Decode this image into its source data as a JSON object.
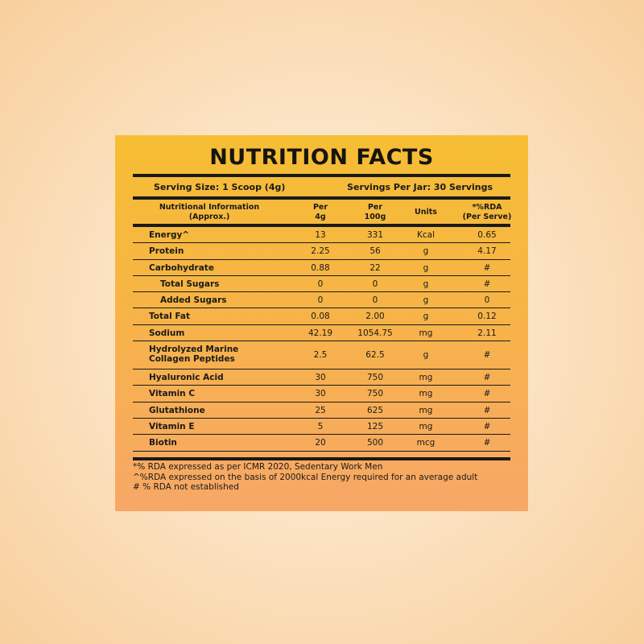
{
  "title": "NUTRITION FACTS",
  "serving_size": "Serving Size: 1 Scoop (4g)",
  "servings_per_jar": "Servings Per Jar: 30 Servings",
  "headers": {
    "info": "Nutritional Information",
    "info2": "(Approx.)",
    "per4g_a": "Per",
    "per4g_b": "4g",
    "per100g_a": "Per",
    "per100g_b": "100g",
    "units": "Units",
    "rda_a": "*%RDA",
    "rda_b": "(Per Serve)"
  },
  "rows": [
    {
      "name": "Energy^",
      "per4g": "13",
      "per100g": "331",
      "unit": "Kcal",
      "rda": "0.65"
    },
    {
      "name": "Protein",
      "per4g": "2.25",
      "per100g": "56",
      "unit": "g",
      "rda": "4.17"
    },
    {
      "name": "Carbohydrate",
      "per4g": "0.88",
      "per100g": "22",
      "unit": "g",
      "rda": "#"
    },
    {
      "name": "Total Sugars",
      "per4g": "0",
      "per100g": "0",
      "unit": "g",
      "rda": "#"
    },
    {
      "name": "Added Sugars",
      "per4g": "0",
      "per100g": "0",
      "unit": "g",
      "rda": "0"
    },
    {
      "name": "Total Fat",
      "per4g": "0.08",
      "per100g": "2.00",
      "unit": "g",
      "rda": "0.12"
    },
    {
      "name": "Sodium",
      "per4g": "42.19",
      "per100g": "1054.75",
      "unit": "mg",
      "rda": "2.11"
    },
    {
      "name": "Hydrolyzed Marine",
      "name2": "Collagen Peptides",
      "per4g": "2.5",
      "per100g": "62.5",
      "unit": "g",
      "rda": "#"
    },
    {
      "name": "Hyaluronic Acid",
      "per4g": "30",
      "per100g": "750",
      "unit": "mg",
      "rda": "#"
    },
    {
      "name": "Vitamin C",
      "per4g": "30",
      "per100g": "750",
      "unit": "mg",
      "rda": "#"
    },
    {
      "name": "Glutathione",
      "per4g": "25",
      "per100g": "625",
      "unit": "mg",
      "rda": "#"
    },
    {
      "name": "Vitamin E",
      "per4g": "5",
      "per100g": "125",
      "unit": "mg",
      "rda": "#"
    },
    {
      "name": "Biotin",
      "per4g": "20",
      "per100g": "500",
      "unit": "mcg",
      "rda": "#"
    }
  ],
  "footnotes": [
    "*% RDA expressed as per ICMR 2020, Sedentary Work Men",
    "^%RDA expressed on the basis of 2000kcal Energy required for an average adult",
    "# % RDA not established"
  ]
}
